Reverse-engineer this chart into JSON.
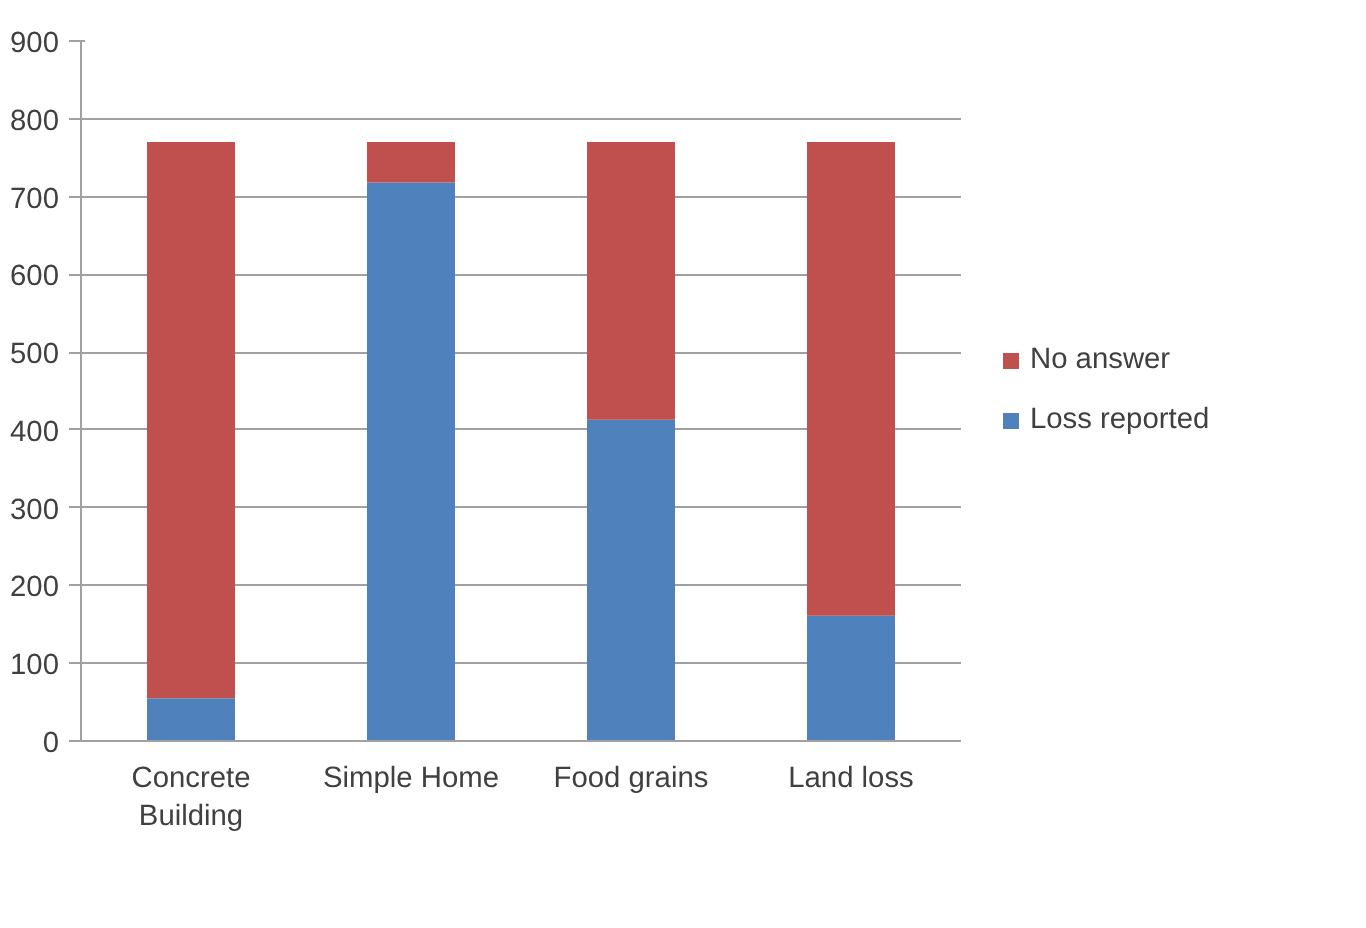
{
  "chart_data": {
    "type": "bar",
    "stacked": true,
    "categories": [
      "Concrete Building",
      "Simple Home",
      "Food grains",
      "Land loss"
    ],
    "series": [
      {
        "name": "Loss reported",
        "color": "#4f81bd",
        "values": [
          55,
          718,
          413,
          161
        ]
      },
      {
        "name": "No answer",
        "color": "#c0504d",
        "values": [
          715,
          52,
          357,
          609
        ]
      }
    ],
    "ylim": [
      0,
      900
    ],
    "yticks": [
      0,
      100,
      200,
      300,
      400,
      500,
      600,
      700,
      800,
      900
    ],
    "grid": "y",
    "legend": "right"
  }
}
